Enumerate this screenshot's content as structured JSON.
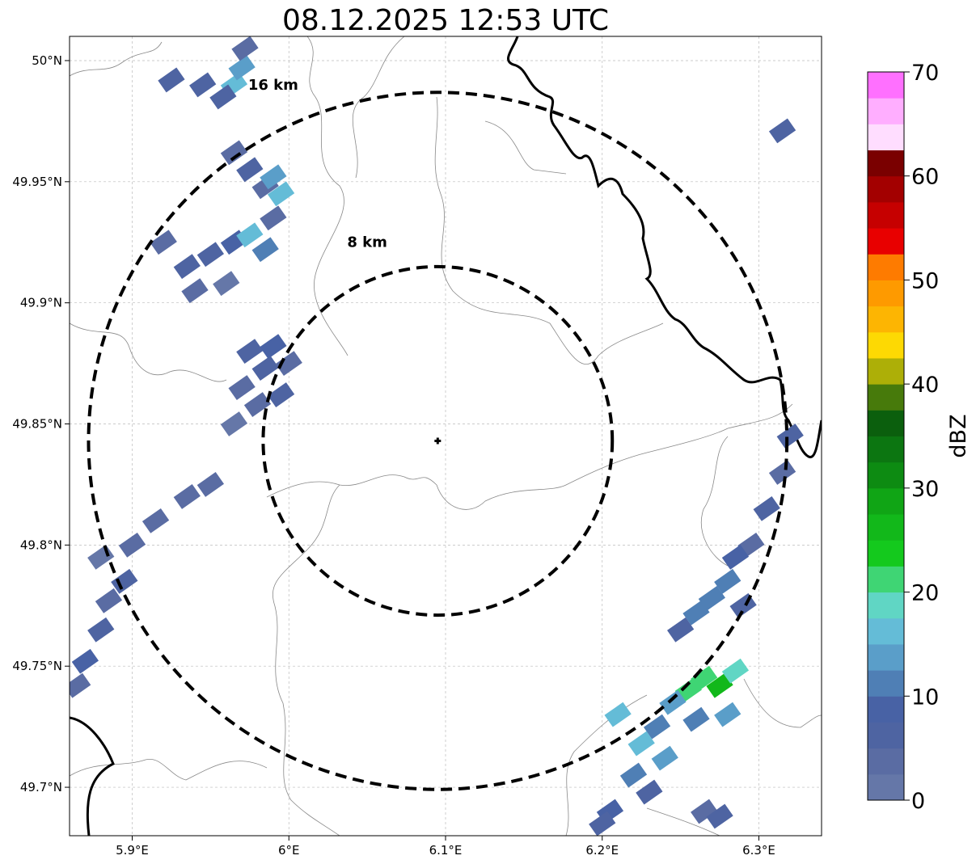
{
  "title": "08.12.2025 12:53 UTC",
  "chart_data": {
    "type": "radar_reflectivity_map",
    "lon_range": [
      5.86,
      6.34
    ],
    "lat_range": [
      49.68,
      50.01
    ],
    "x_ticks": [
      5.9,
      6.0,
      6.1,
      6.2,
      6.3
    ],
    "x_tick_labels": [
      "5.9°E",
      "6°E",
      "6.1°E",
      "6.2°E",
      "6.3°E"
    ],
    "y_ticks": [
      49.7,
      49.75,
      49.8,
      49.85,
      49.9,
      49.95,
      50.0
    ],
    "y_tick_labels": [
      "49.7°N",
      "49.75°N",
      "49.8°N",
      "49.85°N",
      "49.9°N",
      "49.95°N",
      "50°N"
    ],
    "grid": true,
    "center": {
      "lon": 6.095,
      "lat": 49.843
    },
    "range_rings": [
      {
        "radius_km": 8,
        "label": "8 km",
        "label_lon": 6.05,
        "label_lat": 49.923
      },
      {
        "radius_km": 16,
        "label": "16 km",
        "label_lon": 5.99,
        "label_lat": 49.988
      }
    ],
    "colorbar": {
      "label": "dBZ",
      "range": [
        0,
        70
      ],
      "tick_values": [
        0,
        10,
        20,
        30,
        40,
        50,
        60,
        70
      ],
      "tick_labels": [
        "0",
        "10",
        "20",
        "30",
        "40",
        "50",
        "60",
        "70"
      ],
      "step": 2.5,
      "colors": [
        "#6577a8",
        "#5a6ca3",
        "#4e64a2",
        "#4862a5",
        "#4f7fb5",
        "#5a9ec9",
        "#64bcd7",
        "#60d6c4",
        "#3fd574",
        "#14c91d",
        "#12b81a",
        "#10a515",
        "#0d8b12",
        "#0c7611",
        "#0b5f0d",
        "#477a0b",
        "#adaf07",
        "#fdd903",
        "#fdb502",
        "#fe9a00",
        "#fe7b00",
        "#e80000",
        "#c60000",
        "#a30000",
        "#7a0000",
        "#ffddff",
        "#ffaeff",
        "#ff70ff",
        "#f034f0"
      ]
    },
    "precip_cells": [
      {
        "lon": 5.925,
        "lat": 49.992,
        "dbz": 6
      },
      {
        "lon": 5.945,
        "lat": 49.99,
        "dbz": 5
      },
      {
        "lon": 5.965,
        "lat": 49.99,
        "dbz": 17
      },
      {
        "lon": 5.97,
        "lat": 49.997,
        "dbz": 14
      },
      {
        "lon": 5.972,
        "lat": 50.005,
        "dbz": 4
      },
      {
        "lon": 5.958,
        "lat": 49.985,
        "dbz": 6
      },
      {
        "lon": 5.975,
        "lat": 49.955,
        "dbz": 5
      },
      {
        "lon": 5.985,
        "lat": 49.948,
        "dbz": 4
      },
      {
        "lon": 5.99,
        "lat": 49.952,
        "dbz": 14
      },
      {
        "lon": 5.995,
        "lat": 49.945,
        "dbz": 15
      },
      {
        "lon": 5.965,
        "lat": 49.962,
        "dbz": 3
      },
      {
        "lon": 5.92,
        "lat": 49.925,
        "dbz": 4
      },
      {
        "lon": 5.935,
        "lat": 49.915,
        "dbz": 6
      },
      {
        "lon": 5.95,
        "lat": 49.92,
        "dbz": 5
      },
      {
        "lon": 5.965,
        "lat": 49.925,
        "dbz": 8
      },
      {
        "lon": 5.975,
        "lat": 49.928,
        "dbz": 15
      },
      {
        "lon": 5.985,
        "lat": 49.922,
        "dbz": 11
      },
      {
        "lon": 5.99,
        "lat": 49.935,
        "dbz": 4
      },
      {
        "lon": 5.94,
        "lat": 49.905,
        "dbz": 3
      },
      {
        "lon": 5.96,
        "lat": 49.908,
        "dbz": 2
      },
      {
        "lon": 5.975,
        "lat": 49.88,
        "dbz": 5
      },
      {
        "lon": 5.985,
        "lat": 49.873,
        "dbz": 6
      },
      {
        "lon": 5.99,
        "lat": 49.882,
        "dbz": 9
      },
      {
        "lon": 5.97,
        "lat": 49.865,
        "dbz": 4
      },
      {
        "lon": 5.98,
        "lat": 49.858,
        "dbz": 3
      },
      {
        "lon": 5.995,
        "lat": 49.862,
        "dbz": 5
      },
      {
        "lon": 5.965,
        "lat": 49.85,
        "dbz": 2
      },
      {
        "lon": 6.0,
        "lat": 49.875,
        "dbz": 4
      },
      {
        "lon": 5.935,
        "lat": 49.82,
        "dbz": 3
      },
      {
        "lon": 5.95,
        "lat": 49.825,
        "dbz": 4
      },
      {
        "lon": 5.915,
        "lat": 49.81,
        "dbz": 3
      },
      {
        "lon": 5.9,
        "lat": 49.8,
        "dbz": 3
      },
      {
        "lon": 5.895,
        "lat": 49.785,
        "dbz": 5
      },
      {
        "lon": 5.885,
        "lat": 49.777,
        "dbz": 4
      },
      {
        "lon": 5.88,
        "lat": 49.765,
        "dbz": 6
      },
      {
        "lon": 5.87,
        "lat": 49.752,
        "dbz": 8
      },
      {
        "lon": 5.865,
        "lat": 49.742,
        "dbz": 4
      },
      {
        "lon": 5.88,
        "lat": 49.795,
        "dbz": 2
      },
      {
        "lon": 6.32,
        "lat": 49.845,
        "dbz": 5
      },
      {
        "lon": 6.315,
        "lat": 49.83,
        "dbz": 4
      },
      {
        "lon": 6.305,
        "lat": 49.815,
        "dbz": 6
      },
      {
        "lon": 6.295,
        "lat": 49.8,
        "dbz": 4
      },
      {
        "lon": 6.285,
        "lat": 49.795,
        "dbz": 8
      },
      {
        "lon": 6.28,
        "lat": 49.785,
        "dbz": 11
      },
      {
        "lon": 6.27,
        "lat": 49.778,
        "dbz": 10
      },
      {
        "lon": 6.26,
        "lat": 49.772,
        "dbz": 12
      },
      {
        "lon": 6.29,
        "lat": 49.775,
        "dbz": 6
      },
      {
        "lon": 6.25,
        "lat": 49.765,
        "dbz": 5
      },
      {
        "lon": 6.265,
        "lat": 49.745,
        "dbz": 22
      },
      {
        "lon": 6.275,
        "lat": 49.742,
        "dbz": 25
      },
      {
        "lon": 6.285,
        "lat": 49.748,
        "dbz": 18
      },
      {
        "lon": 6.255,
        "lat": 49.74,
        "dbz": 20
      },
      {
        "lon": 6.28,
        "lat": 49.73,
        "dbz": 14
      },
      {
        "lon": 6.26,
        "lat": 49.728,
        "dbz": 10
      },
      {
        "lon": 6.245,
        "lat": 49.735,
        "dbz": 13
      },
      {
        "lon": 6.235,
        "lat": 49.725,
        "dbz": 12
      },
      {
        "lon": 6.225,
        "lat": 49.718,
        "dbz": 15
      },
      {
        "lon": 6.24,
        "lat": 49.712,
        "dbz": 14
      },
      {
        "lon": 6.22,
        "lat": 49.705,
        "dbz": 10
      },
      {
        "lon": 6.21,
        "lat": 49.73,
        "dbz": 16
      },
      {
        "lon": 6.23,
        "lat": 49.698,
        "dbz": 6
      },
      {
        "lon": 6.205,
        "lat": 49.69,
        "dbz": 8
      },
      {
        "lon": 6.2,
        "lat": 49.685,
        "dbz": 5
      },
      {
        "lon": 6.265,
        "lat": 49.69,
        "dbz": 4
      },
      {
        "lon": 6.275,
        "lat": 49.688,
        "dbz": 5
      },
      {
        "lon": 6.315,
        "lat": 49.971,
        "dbz": 6
      }
    ],
    "map_lines": [
      "borders",
      "coastlines",
      "rivers"
    ]
  }
}
